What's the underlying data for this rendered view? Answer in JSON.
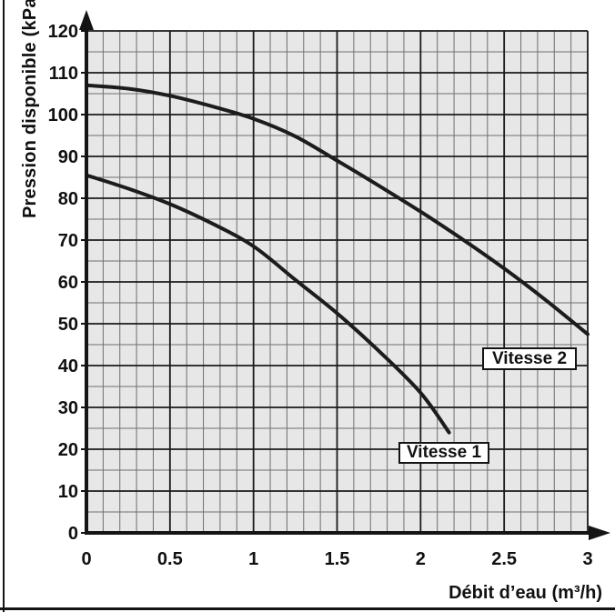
{
  "chart_data": {
    "type": "line",
    "title": "",
    "xlabel": "Débit d’eau (m³/h)",
    "ylabel": "Pression disponible (kPa)",
    "xlim": [
      0,
      3
    ],
    "ylim": [
      0,
      120
    ],
    "x_major_ticks": [
      0,
      0.5,
      1,
      1.5,
      2,
      2.5,
      3
    ],
    "x_tick_labels": [
      "0",
      "0.5",
      "1",
      "1.5",
      "2",
      "2.5",
      "3"
    ],
    "y_major_ticks": [
      0,
      10,
      20,
      30,
      40,
      50,
      60,
      70,
      80,
      90,
      100,
      110,
      120
    ],
    "y_tick_labels": [
      "0",
      "10",
      "20",
      "30",
      "40",
      "50",
      "60",
      "70",
      "80",
      "90",
      "100",
      "110",
      "120"
    ],
    "x_minor_step": 0.1,
    "y_minor_step": 5,
    "grid": "on",
    "legend_position": "boxed-labels-inside-plot",
    "colors": {
      "plot_bg": "#e7e7e7",
      "minor_grid": "#6f6f6f",
      "major_grid": "#1a1a1a",
      "axis": "#141414",
      "curve": "#1c1c1c",
      "label_box_bg": "#ffffff",
      "label_box_border": "#141414",
      "text": "#111111"
    },
    "series": [
      {
        "name": "Vitesse 1",
        "x": [
          0,
          0.25,
          0.5,
          0.75,
          1,
          1.25,
          1.5,
          1.75,
          2,
          2.17
        ],
        "y": [
          85.5,
          82.3,
          78.6,
          74,
          68.5,
          60.5,
          52.5,
          43.5,
          33.5,
          24
        ]
      },
      {
        "name": "Vitesse 2",
        "x": [
          0,
          0.25,
          0.5,
          0.75,
          1,
          1.25,
          1.5,
          1.75,
          2,
          2.25,
          2.5,
          2.75,
          3
        ],
        "y": [
          107,
          106.2,
          104.5,
          102,
          99,
          94.8,
          89,
          83,
          76.8,
          70.2,
          63.2,
          55.6,
          47.5
        ]
      }
    ]
  }
}
